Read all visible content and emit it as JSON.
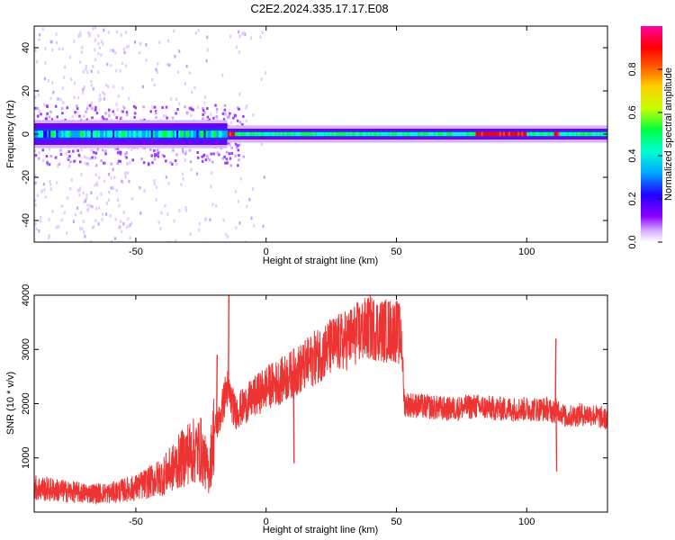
{
  "title": "C2E2.2024.335.17.17.E08",
  "chart_data": [
    {
      "type": "heatmap",
      "xlabel": "Height of straight line (km)",
      "ylabel": "Frequency (Hz)",
      "xlim": [
        -89,
        131
      ],
      "ylim": [
        -50,
        50
      ],
      "x_ticks": [
        -50,
        0,
        50,
        100
      ],
      "y_ticks": [
        -40,
        -20,
        0,
        20,
        40
      ],
      "colorbar": {
        "label": "Normalized spectral amplitude",
        "range": [
          0,
          1
        ],
        "ticks": [
          "0.0",
          "0.2",
          "0.4",
          "0.6",
          "0.8"
        ],
        "colors": [
          "#ffffff",
          "#d9b3ff",
          "#8a00ff",
          "#2200ff",
          "#00a6ff",
          "#00ffd0",
          "#00ff40",
          "#c8ff00",
          "#ffd000",
          "#ff5000",
          "#ff0000",
          "#ff00a0"
        ]
      },
      "band": {
        "center_hz": 0,
        "half_width_hz_left": 5,
        "half_width_hz_right": 2.5,
        "strong_segments_km": [
          [
            -25,
            -12
          ],
          [
            80,
            100
          ],
          [
            110,
            112
          ]
        ]
      },
      "scatter_region_km": [
        -89,
        0
      ]
    },
    {
      "type": "line",
      "xlabel": "Height of straight line (km)",
      "ylabel": "SNR (10 * v/v)",
      "xlim": [
        -89,
        131
      ],
      "ylim": [
        0,
        4000
      ],
      "x_ticks": [
        -50,
        0,
        50,
        100
      ],
      "y_ticks": [
        1000,
        2000,
        3000,
        4000
      ],
      "series": [
        {
          "color": "#ee3333",
          "x": [
            -89,
            -80,
            -70,
            -60,
            -50,
            -40,
            -35,
            -30,
            -25,
            -22,
            -20,
            -18,
            -15,
            -12,
            -10,
            -5,
            0,
            5,
            10,
            15,
            20,
            25,
            30,
            35,
            40,
            45,
            50,
            52,
            53,
            60,
            70,
            80,
            90,
            100,
            108,
            110,
            112,
            115,
            120,
            125,
            131
          ],
          "y": [
            450,
            400,
            350,
            350,
            450,
            650,
            850,
            1100,
            1150,
            700,
            1500,
            1700,
            2300,
            1850,
            1900,
            2100,
            2300,
            2400,
            2550,
            2700,
            2900,
            3050,
            3150,
            3300,
            3400,
            3350,
            3350,
            3200,
            2000,
            1950,
            1900,
            1950,
            1900,
            1900,
            1900,
            1850,
            1900,
            1750,
            1800,
            1800,
            1700
          ]
        }
      ],
      "spikes": [
        {
          "x": -14.5,
          "y": 4000
        },
        {
          "x": -19,
          "y": 2900
        },
        {
          "x": 10.5,
          "y": 900
        },
        {
          "x": 111,
          "y": 3200
        },
        {
          "x": 111.3,
          "y": 750
        }
      ]
    }
  ]
}
